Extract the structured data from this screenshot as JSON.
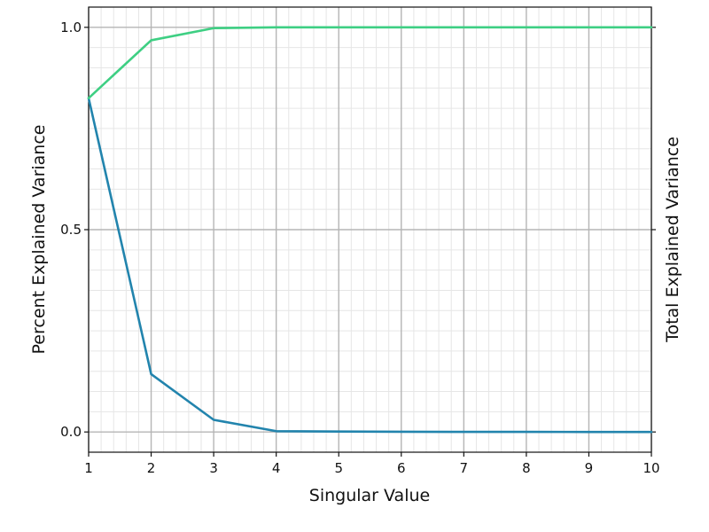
{
  "chart_data": {
    "type": "line",
    "xlabel": "Singular Value",
    "ylabel": "Percent Explained Variance",
    "ylabel_right": "Total Explained Variance",
    "xlim": [
      1,
      10
    ],
    "ylim": [
      -0.05,
      1.05
    ],
    "x_ticks": [
      1,
      2,
      3,
      4,
      5,
      6,
      7,
      8,
      9,
      10
    ],
    "x_tick_labels": [
      "1",
      "2",
      "3",
      "4",
      "5",
      "6",
      "7",
      "8",
      "9",
      "10"
    ],
    "y_ticks": [
      0.0,
      0.5,
      1.0
    ],
    "y_tick_labels": [
      "0.0",
      "0.5",
      "1.0"
    ],
    "grid": true,
    "minor_grid": true,
    "x": [
      1,
      2,
      3,
      4,
      5,
      6,
      7,
      8,
      9,
      10
    ],
    "series": [
      {
        "color": "#2284ad",
        "values": [
          0.825,
          0.143,
          0.03,
          0.002,
          0.001,
          0.0005,
          0.0003,
          0.0002,
          0.0001,
          0.0
        ]
      },
      {
        "color": "#3ecf83",
        "values": [
          0.825,
          0.968,
          0.998,
          1.0,
          1.0,
          1.0,
          1.0,
          1.0,
          1.0,
          1.0
        ]
      }
    ]
  }
}
